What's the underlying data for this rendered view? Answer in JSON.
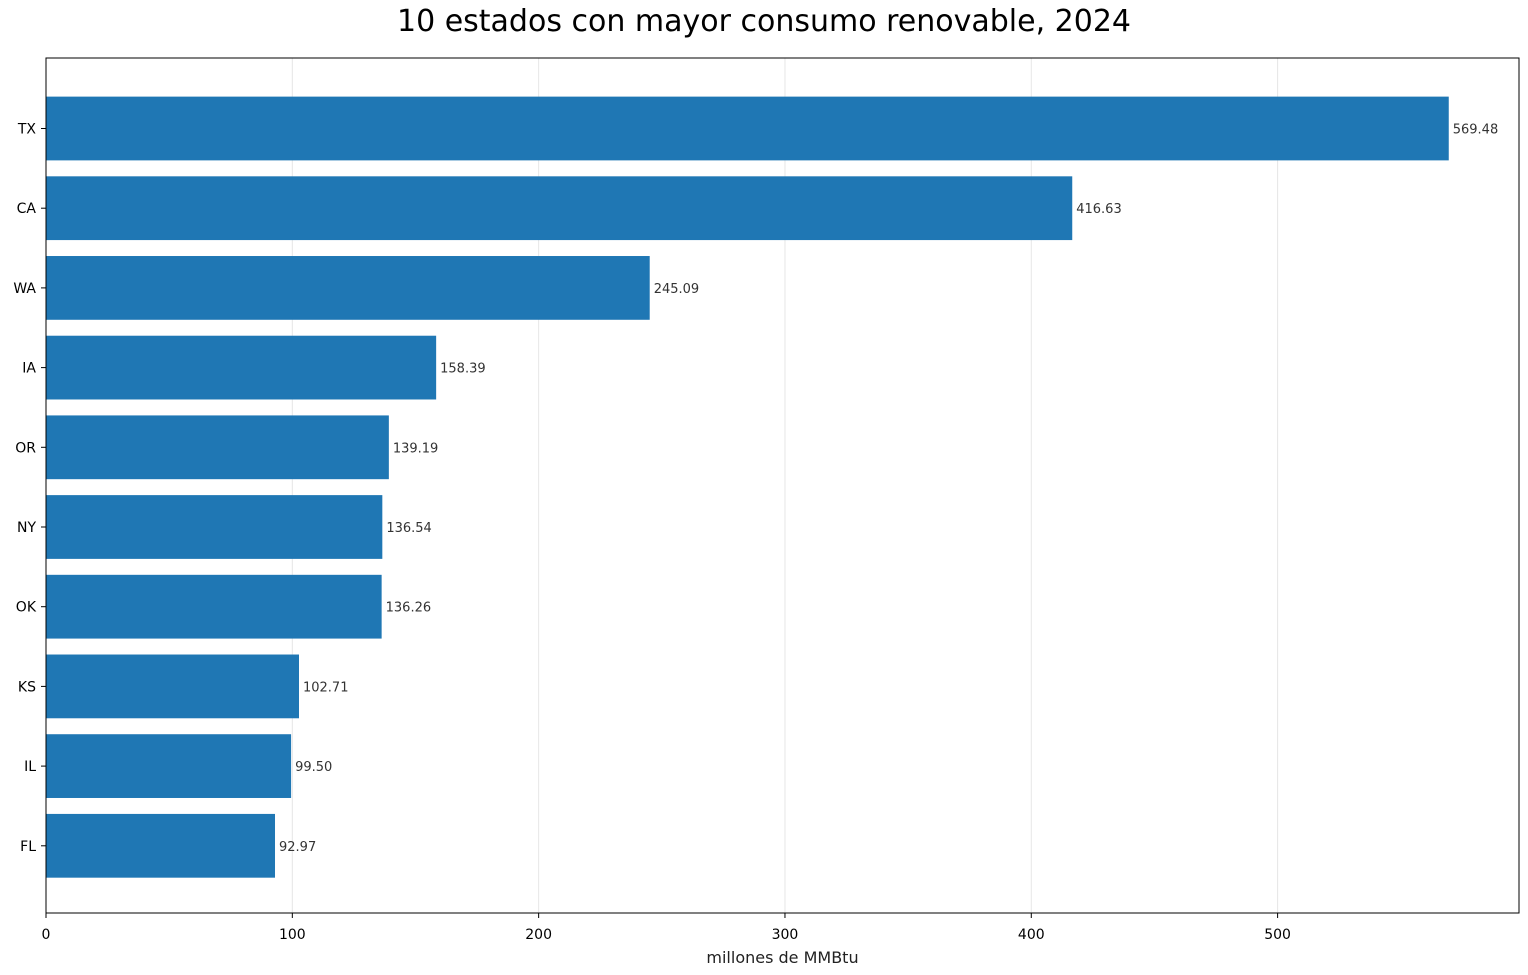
{
  "chart_data": {
    "type": "bar",
    "orientation": "horizontal",
    "title": "10 estados con mayor consumo renovable, 2024",
    "xlabel": "millones de MMBtu",
    "ylabel": "",
    "categories": [
      "TX",
      "CA",
      "WA",
      "IA",
      "OR",
      "NY",
      "OK",
      "KS",
      "IL",
      "FL"
    ],
    "values": [
      569.48,
      416.63,
      245.09,
      158.39,
      139.19,
      136.54,
      136.26,
      102.71,
      99.5,
      92.97
    ],
    "value_labels": [
      "569.48",
      "416.63",
      "245.09",
      "158.39",
      "139.19",
      "136.54",
      "136.26",
      "102.71",
      "99.50",
      "92.97"
    ],
    "xlim": [
      0,
      598
    ],
    "xticks": [
      0,
      100,
      200,
      300,
      400,
      500
    ],
    "grid": "x",
    "legend": "none",
    "bar_color": "#1f77b4"
  }
}
